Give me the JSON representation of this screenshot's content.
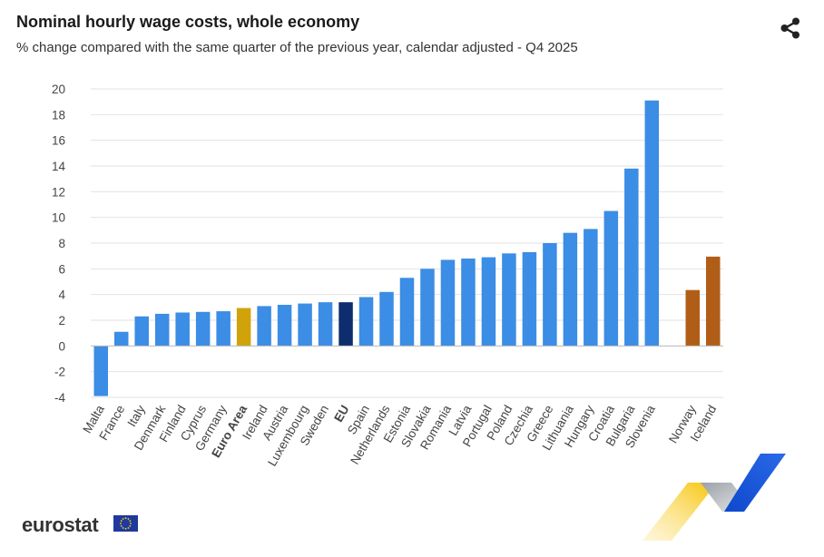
{
  "header": {
    "title": "Nominal hourly wage costs, whole economy",
    "subtitle": "% change compared with the same quarter of the previous year, calendar adjusted - Q4 2025"
  },
  "toolbar": {
    "share_icon": "share-icon"
  },
  "branding": {
    "logo_text": "eurostat",
    "flag_icon": "eu-flag-icon"
  },
  "chart_data": {
    "type": "bar",
    "title": "Nominal hourly wage costs, whole economy",
    "subtitle": "% change compared with the same quarter of the previous year, calendar adjusted - Q4 2025",
    "xlabel": "",
    "ylabel": "",
    "ylim": [
      -4,
      20
    ],
    "yticks": [
      "20",
      "18",
      "16",
      "14",
      "12",
      "10",
      "8",
      "6",
      "4",
      "2",
      "0",
      "-2",
      "-4"
    ],
    "grid": true,
    "colors": {
      "country": "#3b8de5",
      "euro_area": "#d1a30b",
      "eu": "#0d2d6e",
      "efta": "#b05e17",
      "grid": "#e2e2e2"
    },
    "categories": [
      {
        "label": "Malta",
        "value": -3.9,
        "group": "country"
      },
      {
        "label": "France",
        "value": 1.1,
        "group": "country"
      },
      {
        "label": "Italy",
        "value": 2.3,
        "group": "country"
      },
      {
        "label": "Denmark",
        "value": 2.5,
        "group": "country"
      },
      {
        "label": "Finland",
        "value": 2.6,
        "group": "country"
      },
      {
        "label": "Cyprus",
        "value": 2.65,
        "group": "country"
      },
      {
        "label": "Germany",
        "value": 2.7,
        "group": "country"
      },
      {
        "label": "Euro Area",
        "value": 2.95,
        "group": "euro_area"
      },
      {
        "label": "Ireland",
        "value": 3.1,
        "group": "country"
      },
      {
        "label": "Austria",
        "value": 3.2,
        "group": "country"
      },
      {
        "label": "Luxembourg",
        "value": 3.3,
        "group": "country"
      },
      {
        "label": "Sweden",
        "value": 3.4,
        "group": "country"
      },
      {
        "label": "EU",
        "value": 3.4,
        "group": "eu"
      },
      {
        "label": "Spain",
        "value": 3.8,
        "group": "country"
      },
      {
        "label": "Netherlands",
        "value": 4.2,
        "group": "country"
      },
      {
        "label": "Estonia",
        "value": 5.3,
        "group": "country"
      },
      {
        "label": "Slovakia",
        "value": 6.0,
        "group": "country"
      },
      {
        "label": "Romania",
        "value": 6.7,
        "group": "country"
      },
      {
        "label": "Latvia",
        "value": 6.8,
        "group": "country"
      },
      {
        "label": "Portugal",
        "value": 6.9,
        "group": "country"
      },
      {
        "label": "Poland",
        "value": 7.2,
        "group": "country"
      },
      {
        "label": "Czechia",
        "value": 7.3,
        "group": "country"
      },
      {
        "label": "Greece",
        "value": 8.0,
        "group": "country"
      },
      {
        "label": "Lithuania",
        "value": 8.8,
        "group": "country"
      },
      {
        "label": "Hungary",
        "value": 9.1,
        "group": "country"
      },
      {
        "label": "Croatia",
        "value": 10.5,
        "group": "country"
      },
      {
        "label": "Bulgaria",
        "value": 13.8,
        "group": "country"
      },
      {
        "label": "Slovenia",
        "value": 19.1,
        "group": "country"
      },
      {
        "label": "",
        "value": null,
        "group": "gap"
      },
      {
        "label": "Norway",
        "value": 4.35,
        "group": "efta"
      },
      {
        "label": "Iceland",
        "value": 6.95,
        "group": "efta"
      }
    ]
  }
}
